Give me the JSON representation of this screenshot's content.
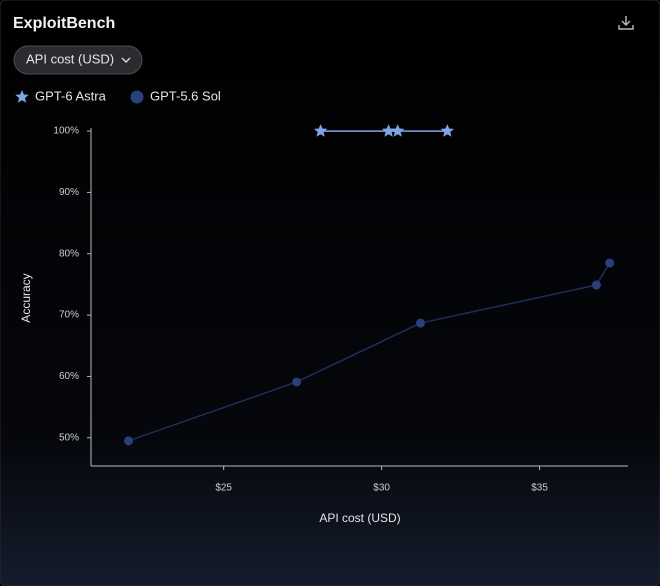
{
  "title": "ExploitBench",
  "dropdown": "API cost (USD)",
  "chart_data": {
    "type": "line",
    "x_label": "API cost (USD)",
    "y_label": "Accuracy",
    "xlim": [
      20.8,
      37.8
    ],
    "xticks": [
      {
        "value": 25,
        "label": "$25"
      },
      {
        "value": 30,
        "label": "$30"
      },
      {
        "value": 35,
        "label": "$35"
      }
    ],
    "ylim": [
      45.4,
      100.5
    ],
    "yticks": [
      {
        "value": 50,
        "label": "50%"
      },
      {
        "value": 60,
        "label": "60%"
      },
      {
        "value": 70,
        "label": "70%"
      },
      {
        "value": 80,
        "label": "80%"
      },
      {
        "value": 90,
        "label": "90%"
      },
      {
        "value": 100,
        "label": "100%"
      }
    ],
    "series": [
      {
        "name": "GPT-6 Astra",
        "color": "#7fa6e6",
        "marker": "star",
        "x": [
          28.07,
          30.22,
          30.51,
          32.08
        ],
        "values": [
          100,
          100,
          100,
          100
        ]
      },
      {
        "name": "GPT-5.6 Sol",
        "color": "#2b3f7a",
        "marker": "circle",
        "x": [
          21.99,
          27.31,
          31.23,
          36.8,
          37.22
        ],
        "values": [
          49.5,
          59.1,
          68.7,
          74.9,
          78.5
        ]
      }
    ]
  }
}
